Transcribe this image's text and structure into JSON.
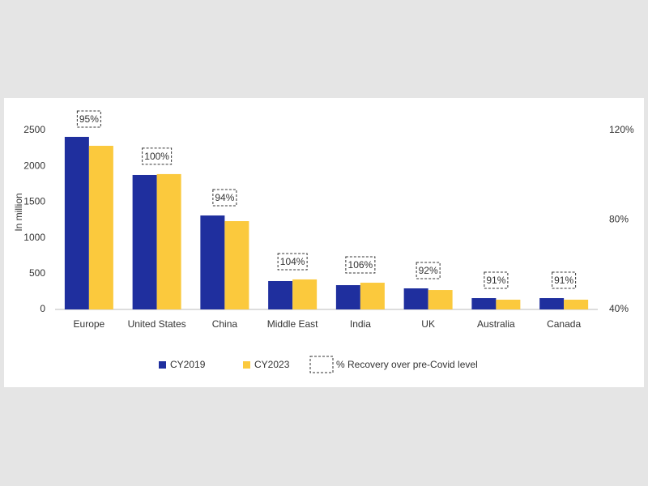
{
  "chart_data": {
    "type": "bar",
    "y_axis_label": "In million",
    "categories": [
      "Europe",
      "United States",
      "China",
      "Middle East",
      "India",
      "UK",
      "Australia",
      "Canada"
    ],
    "series": [
      {
        "name": "CY2019",
        "color": "#1f2f9e",
        "values": [
          2410,
          1878,
          1312,
          396,
          339,
          294,
          158,
          158
        ]
      },
      {
        "name": "CY2023",
        "color": "#fbc93d",
        "values": [
          2285,
          1890,
          1233,
          419,
          373,
          271,
          136,
          136
        ]
      },
      {
        "name": "% Recovery over pre-Covid level",
        "axis": "y2",
        "values": [
          95,
          100,
          94,
          104,
          106,
          92,
          91,
          91
        ],
        "value_labels": [
          "95%",
          "100%",
          "94%",
          "104%",
          "106%",
          "92%",
          "91%",
          "91%"
        ]
      }
    ],
    "ylim": [
      0,
      2500
    ],
    "yticks": [
      0,
      500,
      1000,
      1500,
      2000,
      2500
    ],
    "y2lim": [
      40,
      120
    ],
    "y2ticks": [
      {
        "value": 40,
        "label": "40%"
      },
      {
        "value": 80,
        "label": "80%"
      },
      {
        "value": 120,
        "label": "120%"
      }
    ],
    "grid": false
  }
}
